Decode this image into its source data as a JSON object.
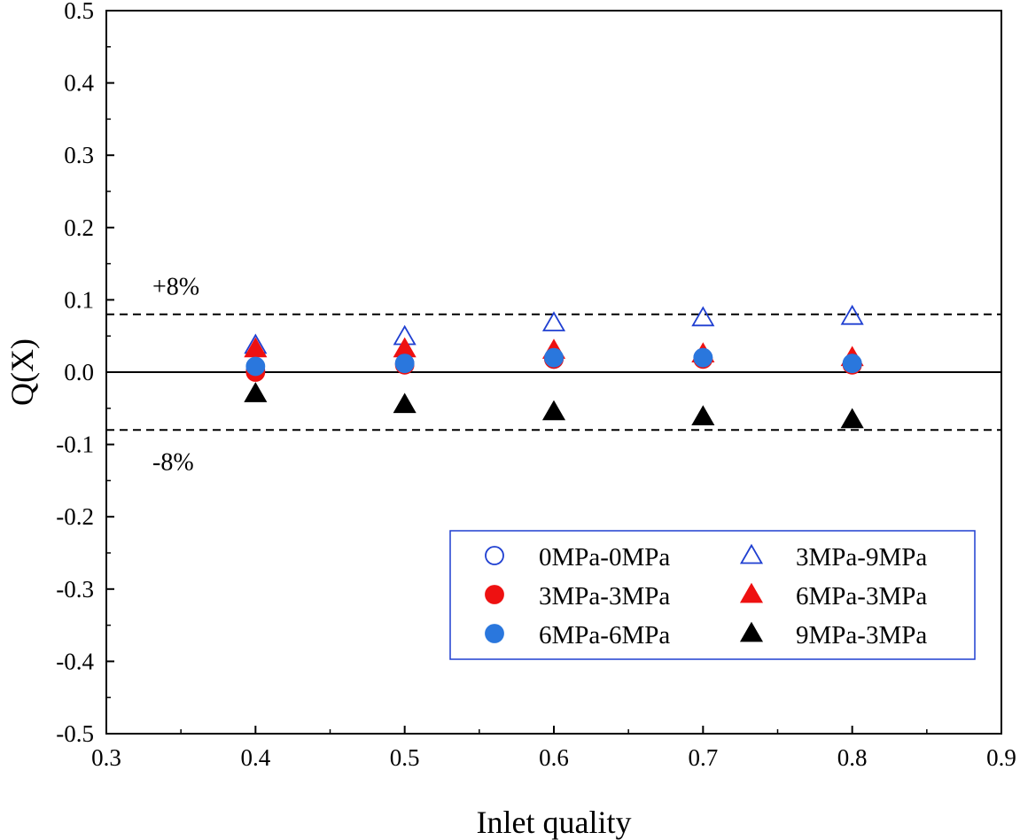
{
  "chart_data": {
    "type": "scatter",
    "xlabel": "Inlet quality",
    "ylabel": "Q(X)",
    "xlim": [
      0.3,
      0.9
    ],
    "ylim": [
      -0.5,
      0.5
    ],
    "xticks": [
      "0.3",
      "0.4",
      "0.5",
      "0.6",
      "0.7",
      "0.8",
      "0.9"
    ],
    "yticks": [
      "-0.5",
      "-0.4",
      "-0.3",
      "-0.2",
      "-0.1",
      "0.0",
      "0.1",
      "0.2",
      "0.3",
      "0.4",
      "0.5"
    ],
    "grid": false,
    "legend_position": "bottom-right",
    "reference_lines": [
      {
        "y": 0.0,
        "style": "solid"
      },
      {
        "y": 0.08,
        "style": "dashed",
        "label": "+8%"
      },
      {
        "y": -0.08,
        "style": "dashed",
        "label": "-8%"
      }
    ],
    "series": [
      {
        "name": "0MPa-0MPa",
        "marker": "circle",
        "filled": false,
        "color": "#1f3fd1",
        "x": [
          0.4,
          0.5,
          0.6,
          0.7,
          0.8
        ],
        "y": [
          0.002,
          0.012,
          0.018,
          0.02,
          0.012
        ]
      },
      {
        "name": "3MPa-3MPa",
        "marker": "circle",
        "filled": true,
        "color": "#ee1111",
        "x": [
          0.4,
          0.5,
          0.6,
          0.7,
          0.8
        ],
        "y": [
          0.0,
          0.01,
          0.018,
          0.018,
          0.01
        ]
      },
      {
        "name": "6MPa-6MPa",
        "marker": "circle",
        "filled": true,
        "color": "#2a77dd",
        "x": [
          0.4,
          0.5,
          0.6,
          0.7,
          0.8
        ],
        "y": [
          0.008,
          0.012,
          0.02,
          0.02,
          0.012
        ]
      },
      {
        "name": "3MPa-9MPa",
        "marker": "triangle",
        "filled": false,
        "color": "#1f3fd1",
        "x": [
          0.4,
          0.5,
          0.6,
          0.7,
          0.8
        ],
        "y": [
          0.037,
          0.049,
          0.068,
          0.075,
          0.077
        ]
      },
      {
        "name": "6MPa-3MPa",
        "marker": "triangle",
        "filled": true,
        "color": "#ee1111",
        "x": [
          0.4,
          0.5,
          0.6,
          0.7,
          0.8
        ],
        "y": [
          0.032,
          0.032,
          0.03,
          0.025,
          0.02
        ]
      },
      {
        "name": "9MPa-3MPa",
        "marker": "triangle",
        "filled": true,
        "color": "#000000",
        "x": [
          0.4,
          0.5,
          0.6,
          0.7,
          0.8
        ],
        "y": [
          -0.03,
          -0.045,
          -0.055,
          -0.062,
          -0.066
        ]
      }
    ]
  }
}
